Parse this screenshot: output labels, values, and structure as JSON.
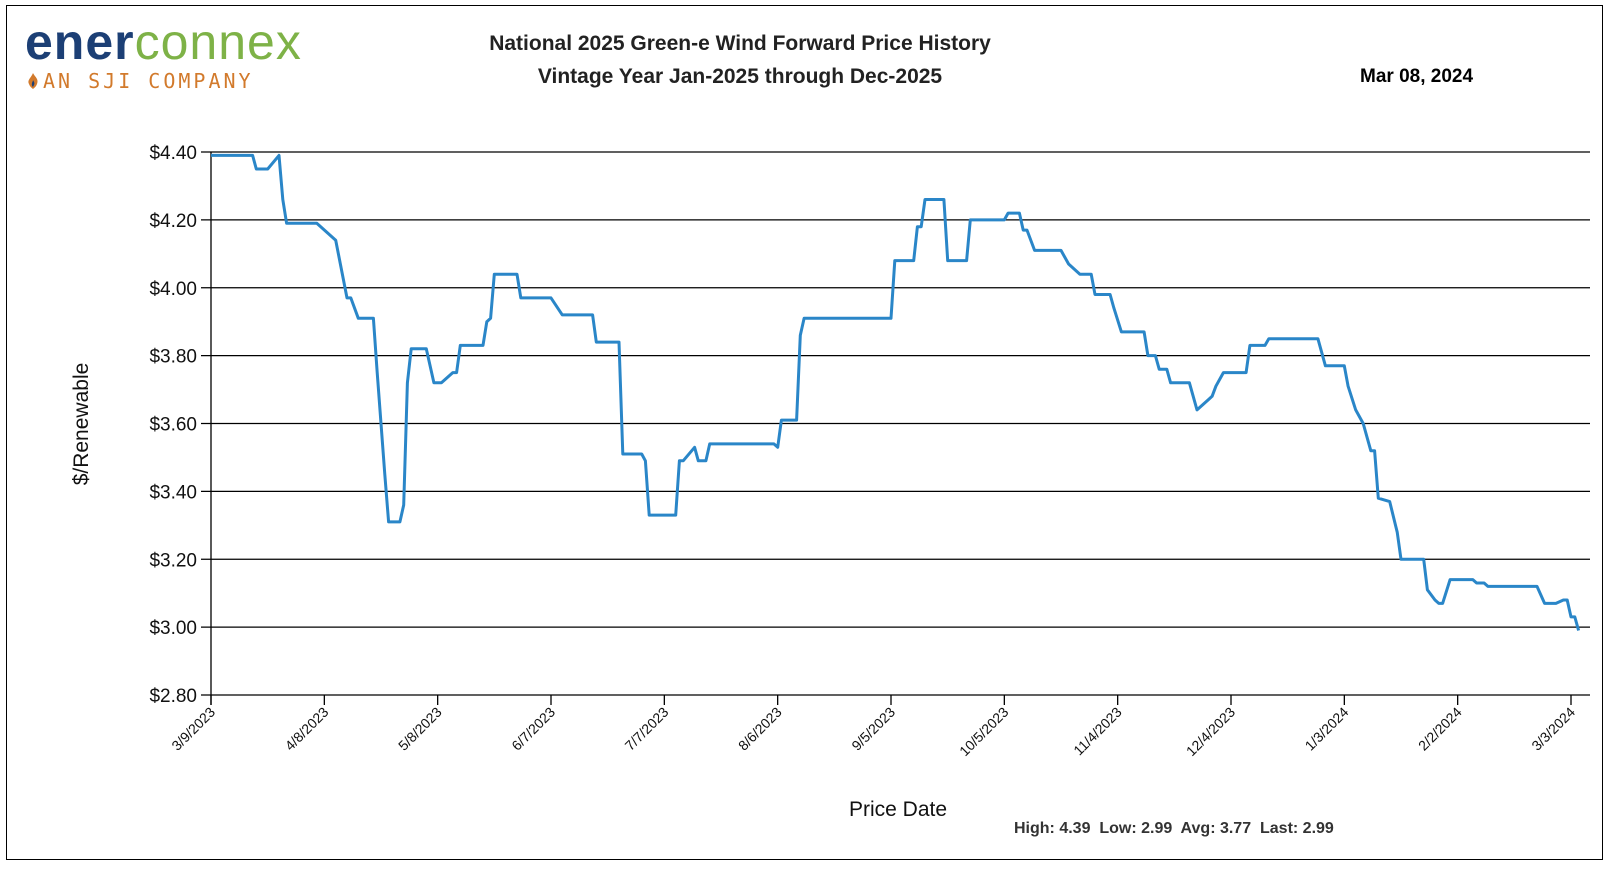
{
  "header": {
    "logo_main_a": "ener",
    "logo_main_b": "connex",
    "logo_sub": "AN SJI COMPANY",
    "title_line1": "National 2025 Green-e Wind  Forward Price History",
    "title_line2": "Vintage Year Jan-2025 through Dec-2025",
    "date": "Mar 08, 2024"
  },
  "stats": {
    "text": "High: 4.39  Low: 2.99  Avg: 3.77  Last: 2.99"
  },
  "colors": {
    "line": "#2a86c8",
    "grid": "#000000",
    "logo_dark": "#1c3f75",
    "logo_green": "#7eb247",
    "logo_orange": "#d27a2c"
  },
  "chart_data": {
    "type": "line",
    "title": "National 2025 Green-e Wind  Forward Price History",
    "subtitle": "Vintage Year Jan-2025 through Dec-2025",
    "xlabel": "Price Date",
    "ylabel": "$/Renewable",
    "ylim": [
      2.8,
      4.4
    ],
    "y_ticks": [
      4.4,
      4.2,
      4.0,
      3.8,
      3.6,
      3.4,
      3.2,
      3.0,
      2.8
    ],
    "y_tick_labels": [
      "$4.40",
      "$4.20",
      "$4.00",
      "$3.80",
      "$3.60",
      "$3.40",
      "$3.20",
      "$3.00",
      "$2.80"
    ],
    "x_tick_labels": [
      "3/9/2023",
      "4/8/2023",
      "5/8/2023",
      "6/7/2023",
      "7/7/2023",
      "8/6/2023",
      "9/5/2023",
      "10/5/2023",
      "11/4/2023",
      "12/4/2023",
      "1/3/2024",
      "2/2/2024",
      "3/3/2024"
    ],
    "x_tick_dates": [
      "2023-03-09",
      "2023-04-08",
      "2023-05-08",
      "2023-06-07",
      "2023-07-07",
      "2023-08-06",
      "2023-09-05",
      "2023-10-05",
      "2023-11-04",
      "2023-12-04",
      "2024-01-03",
      "2024-02-02",
      "2024-03-03"
    ],
    "xlim": [
      "2023-03-09",
      "2024-03-08"
    ],
    "grid": "horizontal",
    "legend": "none",
    "series": [
      {
        "points": [
          [
            "2023-03-09",
            4.39
          ],
          [
            "2023-03-20",
            4.39
          ],
          [
            "2023-03-21",
            4.35
          ],
          [
            "2023-03-24",
            4.35
          ],
          [
            "2023-03-27",
            4.39
          ],
          [
            "2023-03-28",
            4.26
          ],
          [
            "2023-03-29",
            4.19
          ],
          [
            "2023-04-06",
            4.19
          ],
          [
            "2023-04-11",
            4.14
          ],
          [
            "2023-04-14",
            3.97
          ],
          [
            "2023-04-15",
            3.97
          ],
          [
            "2023-04-17",
            3.91
          ],
          [
            "2023-04-21",
            3.91
          ],
          [
            "2023-04-22",
            3.75
          ],
          [
            "2023-04-24",
            3.45
          ],
          [
            "2023-04-25",
            3.31
          ],
          [
            "2023-04-28",
            3.31
          ],
          [
            "2023-04-29",
            3.36
          ],
          [
            "2023-04-30",
            3.72
          ],
          [
            "2023-05-01",
            3.82
          ],
          [
            "2023-05-05",
            3.82
          ],
          [
            "2023-05-07",
            3.72
          ],
          [
            "2023-05-09",
            3.72
          ],
          [
            "2023-05-11",
            3.74
          ],
          [
            "2023-05-12",
            3.75
          ],
          [
            "2023-05-13",
            3.75
          ],
          [
            "2023-05-14",
            3.83
          ],
          [
            "2023-05-20",
            3.83
          ],
          [
            "2023-05-21",
            3.9
          ],
          [
            "2023-05-22",
            3.91
          ],
          [
            "2023-05-23",
            4.04
          ],
          [
            "2023-05-29",
            4.04
          ],
          [
            "2023-05-30",
            3.97
          ],
          [
            "2023-06-07",
            3.97
          ],
          [
            "2023-06-10",
            3.92
          ],
          [
            "2023-06-18",
            3.92
          ],
          [
            "2023-06-19",
            3.84
          ],
          [
            "2023-06-25",
            3.84
          ],
          [
            "2023-06-26",
            3.51
          ],
          [
            "2023-07-01",
            3.51
          ],
          [
            "2023-07-02",
            3.49
          ],
          [
            "2023-07-03",
            3.33
          ],
          [
            "2023-07-10",
            3.33
          ],
          [
            "2023-07-11",
            3.49
          ],
          [
            "2023-07-12",
            3.49
          ],
          [
            "2023-07-15",
            3.53
          ],
          [
            "2023-07-16",
            3.49
          ],
          [
            "2023-07-18",
            3.49
          ],
          [
            "2023-07-19",
            3.54
          ],
          [
            "2023-08-05",
            3.54
          ],
          [
            "2023-08-06",
            3.53
          ],
          [
            "2023-08-07",
            3.61
          ],
          [
            "2023-08-11",
            3.61
          ],
          [
            "2023-08-12",
            3.86
          ],
          [
            "2023-08-13",
            3.91
          ],
          [
            "2023-09-05",
            3.91
          ],
          [
            "2023-09-06",
            4.08
          ],
          [
            "2023-09-11",
            4.08
          ],
          [
            "2023-09-12",
            4.18
          ],
          [
            "2023-09-13",
            4.18
          ],
          [
            "2023-09-14",
            4.26
          ],
          [
            "2023-09-19",
            4.26
          ],
          [
            "2023-09-20",
            4.08
          ],
          [
            "2023-09-25",
            4.08
          ],
          [
            "2023-09-26",
            4.2
          ],
          [
            "2023-10-05",
            4.2
          ],
          [
            "2023-10-06",
            4.22
          ],
          [
            "2023-10-09",
            4.22
          ],
          [
            "2023-10-10",
            4.17
          ],
          [
            "2023-10-11",
            4.17
          ],
          [
            "2023-10-13",
            4.11
          ],
          [
            "2023-10-20",
            4.11
          ],
          [
            "2023-10-22",
            4.07
          ],
          [
            "2023-10-25",
            4.04
          ],
          [
            "2023-10-28",
            4.04
          ],
          [
            "2023-10-29",
            3.98
          ],
          [
            "2023-11-02",
            3.98
          ],
          [
            "2023-11-03",
            3.94
          ],
          [
            "2023-11-05",
            3.87
          ],
          [
            "2023-11-11",
            3.87
          ],
          [
            "2023-11-12",
            3.8
          ],
          [
            "2023-11-14",
            3.8
          ],
          [
            "2023-11-15",
            3.76
          ],
          [
            "2023-11-17",
            3.76
          ],
          [
            "2023-11-18",
            3.72
          ],
          [
            "2023-11-23",
            3.72
          ],
          [
            "2023-11-25",
            3.64
          ],
          [
            "2023-11-28",
            3.67
          ],
          [
            "2023-11-29",
            3.68
          ],
          [
            "2023-11-30",
            3.71
          ],
          [
            "2023-12-02",
            3.75
          ],
          [
            "2023-12-08",
            3.75
          ],
          [
            "2023-12-09",
            3.83
          ],
          [
            "2023-12-13",
            3.83
          ],
          [
            "2023-12-14",
            3.85
          ],
          [
            "2023-12-27",
            3.85
          ],
          [
            "2023-12-29",
            3.77
          ],
          [
            "2024-01-03",
            3.77
          ],
          [
            "2024-01-04",
            3.71
          ],
          [
            "2024-01-06",
            3.64
          ],
          [
            "2024-01-08",
            3.6
          ],
          [
            "2024-01-10",
            3.52
          ],
          [
            "2024-01-11",
            3.52
          ],
          [
            "2024-01-12",
            3.38
          ],
          [
            "2024-01-15",
            3.37
          ],
          [
            "2024-01-17",
            3.28
          ],
          [
            "2024-01-18",
            3.2
          ],
          [
            "2024-01-24",
            3.2
          ],
          [
            "2024-01-25",
            3.11
          ],
          [
            "2024-01-27",
            3.08
          ],
          [
            "2024-01-28",
            3.07
          ],
          [
            "2024-01-29",
            3.07
          ],
          [
            "2024-01-31",
            3.14
          ],
          [
            "2024-02-06",
            3.14
          ],
          [
            "2024-02-07",
            3.13
          ],
          [
            "2024-02-09",
            3.13
          ],
          [
            "2024-02-10",
            3.12
          ],
          [
            "2024-02-23",
            3.12
          ],
          [
            "2024-02-25",
            3.07
          ],
          [
            "2024-02-28",
            3.07
          ],
          [
            "2024-03-01",
            3.08
          ],
          [
            "2024-03-02",
            3.08
          ],
          [
            "2024-03-03",
            3.03
          ],
          [
            "2024-03-04",
            3.03
          ],
          [
            "2024-03-05",
            2.99
          ]
        ]
      }
    ]
  }
}
